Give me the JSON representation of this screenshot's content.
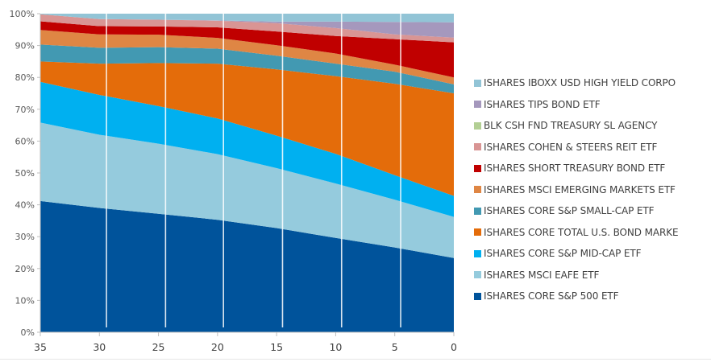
{
  "chart_data": {
    "type": "area",
    "stacked": "percent",
    "title": "",
    "xlabel": "",
    "ylabel": "",
    "x": [
      35,
      30,
      25,
      20,
      15,
      10,
      5,
      0
    ],
    "x_ticks": [
      "35",
      "30",
      "25",
      "20",
      "15",
      "10",
      "5",
      "0"
    ],
    "x_reversed": true,
    "xlim": [
      35,
      0
    ],
    "ylim": [
      0,
      100
    ],
    "y_ticks": [
      "0%",
      "10%",
      "20%",
      "30%",
      "40%",
      "50%",
      "60%",
      "70%",
      "80%",
      "90%",
      "100%"
    ],
    "grid": false,
    "vertical_markers": [
      29.4,
      24.4,
      19.5,
      14.5,
      9.5,
      4.5
    ],
    "legend_position": "right",
    "series": [
      {
        "name": "ISHARES CORE S&P 500 ETF",
        "color": "#00539b",
        "values": [
          41.2,
          39.0,
          37.2,
          35.3,
          32.7,
          29.6,
          26.6,
          23.3
        ]
      },
      {
        "name": "ISHARES MSCI EAFE ETF",
        "color": "#95cbdd",
        "values": [
          24.6,
          23.0,
          22.0,
          20.6,
          18.8,
          17.1,
          15.0,
          12.9
        ]
      },
      {
        "name": "ISHARES CORE S&P MID-CAP ETF",
        "color": "#00b0f0",
        "values": [
          12.8,
          12.5,
          11.8,
          11.2,
          10.2,
          9.3,
          7.7,
          6.6
        ]
      },
      {
        "name": "ISHARES CORE TOTAL U.S. BOND MARKE",
        "color": "#e46c0a",
        "values": [
          6.4,
          9.8,
          13.5,
          17.2,
          20.8,
          24.4,
          28.7,
          32.2
        ]
      },
      {
        "name": "ISHARES CORE S&P SMALL-CAP ETF",
        "color": "#4299b2",
        "values": [
          5.3,
          5.0,
          5.0,
          4.7,
          4.3,
          3.9,
          3.8,
          2.8
        ]
      },
      {
        "name": "ISHARES MSCI EMERGING MARKETS ETF",
        "color": "#df8644",
        "values": [
          4.6,
          4.2,
          3.9,
          3.4,
          3.3,
          3.2,
          2.2,
          2.2
        ]
      },
      {
        "name": "ISHARES SHORT TREASURY BOND ETF",
        "color": "#c00000",
        "values": [
          2.7,
          2.6,
          2.6,
          3.3,
          4.3,
          5.5,
          8.0,
          11.0
        ]
      },
      {
        "name": "ISHARES COHEN & STEERS REIT ETF",
        "color": "#d99594",
        "values": [
          2.2,
          2.2,
          2.1,
          2.1,
          2.6,
          2.5,
          1.5,
          1.5
        ]
      },
      {
        "name": "BLK CSH FND TREASURY SL AGENCY",
        "color": "#b3cf94",
        "values": [
          0,
          0,
          0,
          0,
          0,
          0,
          0,
          0
        ]
      },
      {
        "name": "ISHARES TIPS BOND ETF",
        "color": "#a598bd",
        "values": [
          0,
          0,
          0,
          0.1,
          0.5,
          2.0,
          3.9,
          4.8
        ]
      },
      {
        "name": "ISHARES IBOXX USD HIGH YIELD CORPO",
        "color": "#92c4d6",
        "values": [
          0.2,
          1.7,
          1.9,
          2.1,
          2.5,
          2.5,
          2.6,
          2.7
        ]
      }
    ]
  }
}
